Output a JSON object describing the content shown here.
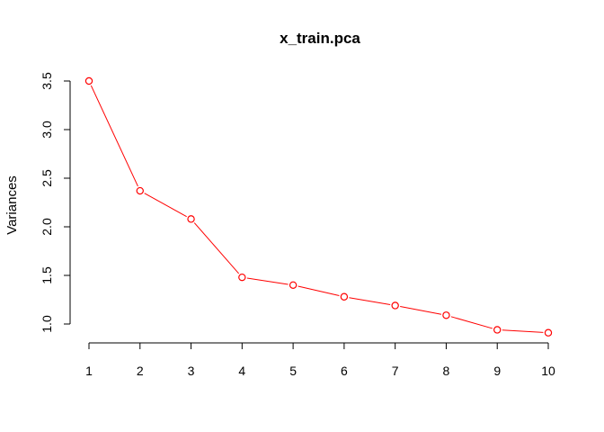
{
  "chart_data": {
    "type": "line",
    "title": "x_train.pca",
    "xlabel": "",
    "ylabel": "Variances",
    "x": [
      1,
      2,
      3,
      4,
      5,
      6,
      7,
      8,
      9,
      10
    ],
    "series": [
      {
        "values": [
          3.5,
          2.37,
          2.08,
          1.48,
          1.4,
          1.28,
          1.19,
          1.09,
          0.94,
          0.91
        ]
      }
    ],
    "xticks": [
      1,
      2,
      3,
      4,
      5,
      6,
      7,
      8,
      9,
      10
    ],
    "yticks": [
      "1.0",
      "1.5",
      "2.0",
      "2.5",
      "3.0",
      "3.5"
    ],
    "ylim": [
      0.91,
      3.5
    ],
    "xlim": [
      1,
      10
    ],
    "grid": false,
    "legend": "none",
    "colors": {
      "series": "#ff0000",
      "axis": "#000000"
    },
    "marker": "open-circle"
  }
}
